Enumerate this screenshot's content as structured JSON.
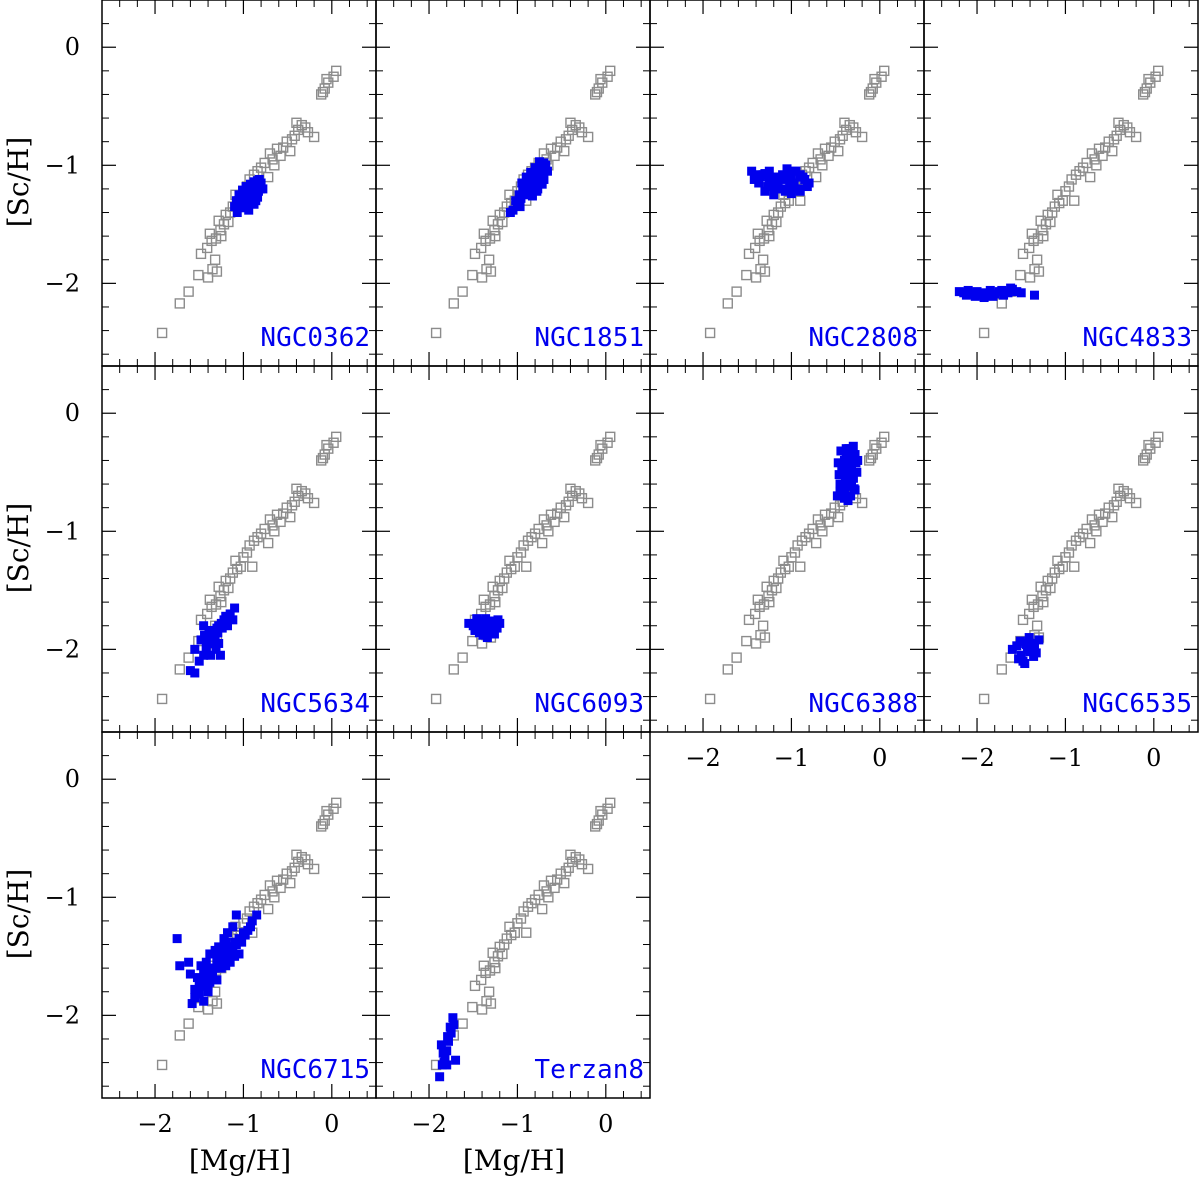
{
  "chart_data": {
    "type": "scatter",
    "xlabel": "[Mg/H]",
    "ylabel": "[Sc/H]",
    "xlim": [
      -2.6,
      0.5
    ],
    "ylim": [
      -2.7,
      0.4
    ],
    "x_ticks": [
      -2,
      -1,
      0
    ],
    "x_tick_labels": [
      "−2",
      "−1",
      "0"
    ],
    "y_ticks": [
      -2,
      -1,
      0
    ],
    "y_tick_labels": [
      "−2",
      "−1",
      "0"
    ],
    "grid": false,
    "colors": {
      "reference": "#8c8c8c",
      "cluster": "#0000ee",
      "label": "#0000ee"
    },
    "reference_series": {
      "marker": "open-square",
      "x": [
        -1.92,
        -1.72,
        -1.62,
        -1.51,
        -1.4,
        -1.35,
        -1.3,
        -1.48,
        -1.41,
        -1.36,
        -1.32,
        -1.38,
        -1.31,
        -1.26,
        -1.22,
        -1.17,
        -1.28,
        -1.2,
        -1.15,
        -1.12,
        -1.07,
        -1.03,
        -1.09,
        -1.0,
        -0.96,
        -0.93,
        -0.88,
        -0.84,
        -0.8,
        -0.76,
        -0.72,
        -0.67,
        -0.7,
        -0.62,
        -0.58,
        -0.55,
        -0.51,
        -0.47,
        -0.42,
        -0.38,
        -0.34,
        -0.4,
        -0.3,
        -0.27,
        -0.2,
        -0.12,
        -0.08,
        -0.04,
        0.02,
        0.05,
        -0.1,
        -0.06,
        -1.25,
        -0.9,
        -0.65,
        -0.45
      ],
      "y": [
        -2.42,
        -2.17,
        -2.07,
        -1.93,
        -1.95,
        -1.88,
        -1.9,
        -1.75,
        -1.7,
        -1.64,
        -1.8,
        -1.58,
        -1.62,
        -1.55,
        -1.5,
        -1.48,
        -1.47,
        -1.42,
        -1.4,
        -1.35,
        -1.32,
        -1.3,
        -1.25,
        -1.22,
        -1.18,
        -1.12,
        -1.08,
        -1.05,
        -1.02,
        -0.98,
        -1.1,
        -0.95,
        -0.9,
        -0.86,
        -0.92,
        -0.85,
        -0.8,
        -0.88,
        -0.75,
        -0.7,
        -0.66,
        -0.64,
        -0.68,
        -0.72,
        -0.76,
        -0.4,
        -0.35,
        -0.3,
        -0.25,
        -0.2,
        -0.38,
        -0.27,
        -1.6,
        -1.3,
        -1.0,
        -0.78
      ]
    },
    "panels": [
      {
        "name": "NGC0362",
        "x": [
          -1.1,
          -1.06,
          -1.02,
          -0.98,
          -0.94,
          -0.9,
          -0.86,
          -0.82,
          -1.08,
          -1.04,
          -1.0,
          -0.96,
          -0.92,
          -0.88,
          -0.84,
          -0.8,
          -1.05,
          -1.01,
          -0.97,
          -0.93,
          -0.89,
          -0.85,
          -0.81,
          -1.03,
          -0.99,
          -0.95,
          -0.91,
          -0.87,
          -0.83,
          -0.78,
          -1.07,
          -0.95,
          -0.9,
          -0.86,
          -1.0,
          -0.94,
          -0.88,
          -0.84
        ],
        "y": [
          -1.35,
          -1.3,
          -1.27,
          -1.24,
          -1.2,
          -1.17,
          -1.15,
          -1.12,
          -1.3,
          -1.26,
          -1.22,
          -1.19,
          -1.16,
          -1.14,
          -1.13,
          -1.15,
          -1.25,
          -1.21,
          -1.18,
          -1.23,
          -1.2,
          -1.18,
          -1.2,
          -1.32,
          -1.28,
          -1.25,
          -1.22,
          -1.25,
          -1.22,
          -1.2,
          -1.4,
          -1.33,
          -1.28,
          -1.3,
          -1.36,
          -1.38,
          -1.33,
          -1.27
        ]
      },
      {
        "name": "NGC1851",
        "x": [
          -1.05,
          -1.0,
          -0.96,
          -0.92,
          -0.88,
          -0.84,
          -0.8,
          -0.76,
          -0.72,
          -0.68,
          -1.02,
          -0.98,
          -0.94,
          -0.9,
          -0.86,
          -0.82,
          -0.78,
          -0.74,
          -0.7,
          -0.66,
          -0.95,
          -0.9,
          -0.85,
          -0.8,
          -0.75,
          -0.7,
          -0.92,
          -0.87,
          -0.82,
          -0.77,
          -0.72,
          -0.97,
          -1.08,
          -0.83,
          -0.78,
          -0.73
        ],
        "y": [
          -1.38,
          -1.33,
          -1.28,
          -1.25,
          -1.22,
          -1.18,
          -1.15,
          -1.1,
          -1.05,
          -1.0,
          -1.3,
          -1.25,
          -1.2,
          -1.16,
          -1.12,
          -1.08,
          -1.04,
          -1.0,
          -0.98,
          -1.05,
          -1.15,
          -1.1,
          -1.06,
          -1.02,
          -0.97,
          -1.12,
          -1.22,
          -1.18,
          -1.14,
          -1.2,
          -1.16,
          -1.35,
          -1.4,
          -1.26,
          -1.22,
          -1.08
        ]
      },
      {
        "name": "NGC2808",
        "x": [
          -1.45,
          -1.4,
          -1.35,
          -1.3,
          -1.25,
          -1.2,
          -1.15,
          -1.1,
          -1.05,
          -1.0,
          -0.95,
          -0.9,
          -0.85,
          -0.8,
          -1.42,
          -1.37,
          -1.32,
          -1.27,
          -1.22,
          -1.17,
          -1.12,
          -1.07,
          -1.02,
          -0.97,
          -0.92,
          -0.87,
          -0.82,
          -1.3,
          -1.2,
          -1.1,
          -1.0,
          -0.9,
          -1.25,
          -1.15,
          -1.05,
          -0.95
        ],
        "y": [
          -1.05,
          -1.08,
          -1.1,
          -1.07,
          -1.12,
          -1.1,
          -1.15,
          -1.08,
          -1.12,
          -1.1,
          -1.05,
          -1.08,
          -1.12,
          -1.15,
          -1.12,
          -1.15,
          -1.08,
          -1.18,
          -1.14,
          -1.2,
          -1.1,
          -1.22,
          -1.18,
          -1.15,
          -1.2,
          -1.1,
          -1.18,
          -1.22,
          -1.25,
          -1.2,
          -1.24,
          -1.22,
          -1.05,
          -1.1,
          -1.03,
          -1.05
        ]
      },
      {
        "name": "NGC4833",
        "x": [
          -2.2,
          -2.15,
          -2.1,
          -2.05,
          -2.0,
          -1.95,
          -1.9,
          -1.85,
          -1.8,
          -1.75,
          -1.7,
          -1.65,
          -1.6,
          -1.55,
          -2.12,
          -2.02,
          -1.92,
          -1.82,
          -1.72,
          -1.62,
          -1.5,
          -1.35
        ],
        "y": [
          -2.07,
          -2.08,
          -2.06,
          -2.09,
          -2.07,
          -2.1,
          -2.08,
          -2.06,
          -2.09,
          -2.07,
          -2.1,
          -2.08,
          -2.05,
          -2.07,
          -2.1,
          -2.11,
          -2.12,
          -2.11,
          -2.06,
          -2.04,
          -2.08,
          -2.1
        ]
      },
      {
        "name": "NGC5634",
        "x": [
          -1.55,
          -1.5,
          -1.45,
          -1.42,
          -1.4,
          -1.38,
          -1.35,
          -1.32,
          -1.3,
          -1.28,
          -1.25,
          -1.22,
          -1.2,
          -1.18,
          -1.15,
          -1.12,
          -1.48,
          -1.44,
          -1.39,
          -1.34,
          -1.29,
          -1.24,
          -1.19,
          -1.36,
          -1.31,
          -1.26,
          -1.42,
          -1.37,
          -1.6,
          -1.55,
          -1.33,
          -1.28,
          -1.45,
          -1.1
        ],
        "y": [
          -2.2,
          -2.1,
          -2.05,
          -2.0,
          -1.95,
          -1.9,
          -1.85,
          -1.88,
          -1.82,
          -1.8,
          -1.78,
          -1.75,
          -1.72,
          -1.8,
          -1.7,
          -1.75,
          -1.92,
          -1.88,
          -1.84,
          -1.9,
          -1.86,
          -1.82,
          -1.78,
          -1.95,
          -2.0,
          -2.05,
          -1.98,
          -2.05,
          -2.18,
          -2.0,
          -1.9,
          -1.95,
          -1.8,
          -1.65
        ]
      },
      {
        "name": "NGC6093",
        "x": [
          -1.55,
          -1.5,
          -1.45,
          -1.4,
          -1.35,
          -1.3,
          -1.25,
          -1.2,
          -1.48,
          -1.43,
          -1.38,
          -1.33,
          -1.28,
          -1.23,
          -1.46,
          -1.41,
          -1.36,
          -1.31,
          -1.26,
          -1.39,
          -1.34,
          -1.29,
          -1.42,
          -1.32,
          -1.22
        ],
        "y": [
          -1.78,
          -1.8,
          -1.77,
          -1.82,
          -1.79,
          -1.76,
          -1.8,
          -1.78,
          -1.84,
          -1.86,
          -1.83,
          -1.81,
          -1.84,
          -1.82,
          -1.74,
          -1.76,
          -1.74,
          -1.85,
          -1.87,
          -1.88,
          -1.9,
          -1.86,
          -1.8,
          -1.78,
          -1.75
        ]
      },
      {
        "name": "NGC6388",
        "x": [
          -0.48,
          -0.45,
          -0.42,
          -0.4,
          -0.38,
          -0.35,
          -0.32,
          -0.3,
          -0.28,
          -0.26,
          -0.47,
          -0.43,
          -0.39,
          -0.35,
          -0.31,
          -0.27,
          -0.44,
          -0.4,
          -0.36,
          -0.32,
          -0.28,
          -0.46,
          -0.41,
          -0.37,
          -0.33,
          -0.29,
          -0.25,
          -0.42,
          -0.38,
          -0.34,
          -0.3,
          -0.45,
          -0.4,
          -0.35,
          -0.3
        ],
        "y": [
          -0.7,
          -0.6,
          -0.5,
          -0.4,
          -0.35,
          -0.3,
          -0.45,
          -0.55,
          -0.65,
          -0.5,
          -0.42,
          -0.48,
          -0.56,
          -0.62,
          -0.38,
          -0.42,
          -0.32,
          -0.68,
          -0.74,
          -0.58,
          -0.35,
          -0.52,
          -0.46,
          -0.36,
          -0.7,
          -0.64,
          -0.4,
          -0.6,
          -0.3,
          -0.5,
          -0.28,
          -0.66,
          -0.72,
          -0.44,
          -0.55
        ]
      },
      {
        "name": "NGC6535",
        "x": [
          -1.6,
          -1.55,
          -1.5,
          -1.45,
          -1.4,
          -1.35,
          -1.3,
          -1.53,
          -1.48,
          -1.43,
          -1.38,
          -1.33,
          -1.51,
          -1.46,
          -1.41,
          -1.36,
          -1.44
        ],
        "y": [
          -2.0,
          -1.97,
          -2.05,
          -1.95,
          -2.02,
          -1.98,
          -1.92,
          -2.08,
          -2.1,
          -2.0,
          -1.95,
          -2.03,
          -1.93,
          -2.12,
          -1.9,
          -2.06,
          -1.96
        ]
      },
      {
        "name": "NGC6715",
        "x": [
          -1.75,
          -1.72,
          -1.62,
          -1.58,
          -1.55,
          -1.52,
          -1.5,
          -1.48,
          -1.45,
          -1.42,
          -1.4,
          -1.38,
          -1.35,
          -1.32,
          -1.3,
          -1.28,
          -1.25,
          -1.22,
          -1.2,
          -1.18,
          -1.15,
          -1.12,
          -1.1,
          -1.08,
          -1.05,
          -1.02,
          -1.0,
          -0.98,
          -0.95,
          -0.92,
          -0.9,
          -0.85,
          -1.55,
          -1.5,
          -1.45,
          -1.4,
          -1.35,
          -1.3,
          -1.25,
          -1.2,
          -1.15,
          -1.1,
          -1.05,
          -1.45,
          -1.4,
          -1.35,
          -1.3,
          -1.25,
          -1.2,
          -1.6,
          -1.52,
          -1.48,
          -1.42,
          -1.38,
          -1.32,
          -1.28,
          -1.22,
          -1.18,
          -1.12,
          -1.08
        ],
        "y": [
          -1.35,
          -1.58,
          -1.55,
          -1.9,
          -1.85,
          -1.8,
          -1.72,
          -1.75,
          -1.68,
          -1.7,
          -1.65,
          -1.72,
          -1.62,
          -1.6,
          -1.55,
          -1.58,
          -1.5,
          -1.52,
          -1.45,
          -1.48,
          -1.42,
          -1.45,
          -1.38,
          -1.4,
          -1.35,
          -1.38,
          -1.3,
          -1.32,
          -1.28,
          -1.25,
          -1.2,
          -1.15,
          -1.78,
          -1.82,
          -1.62,
          -1.75,
          -1.68,
          -1.7,
          -1.6,
          -1.58,
          -1.55,
          -1.5,
          -1.48,
          -1.88,
          -1.8,
          -1.6,
          -1.52,
          -1.45,
          -1.38,
          -1.65,
          -1.68,
          -1.58,
          -1.55,
          -1.48,
          -1.45,
          -1.42,
          -1.35,
          -1.3,
          -1.25,
          -1.15
        ]
      },
      {
        "name": "Terzan8",
        "x": [
          -1.88,
          -1.85,
          -1.82,
          -1.8,
          -1.78,
          -1.75,
          -1.72,
          -1.7,
          -1.86,
          -1.83,
          -1.79,
          -1.76,
          -1.73,
          -1.84,
          -1.8
        ],
        "y": [
          -2.52,
          -2.42,
          -2.35,
          -2.3,
          -2.22,
          -2.15,
          -2.08,
          -2.38,
          -2.25,
          -2.4,
          -2.18,
          -2.1,
          -2.02,
          -2.32,
          -2.42
        ]
      }
    ]
  }
}
